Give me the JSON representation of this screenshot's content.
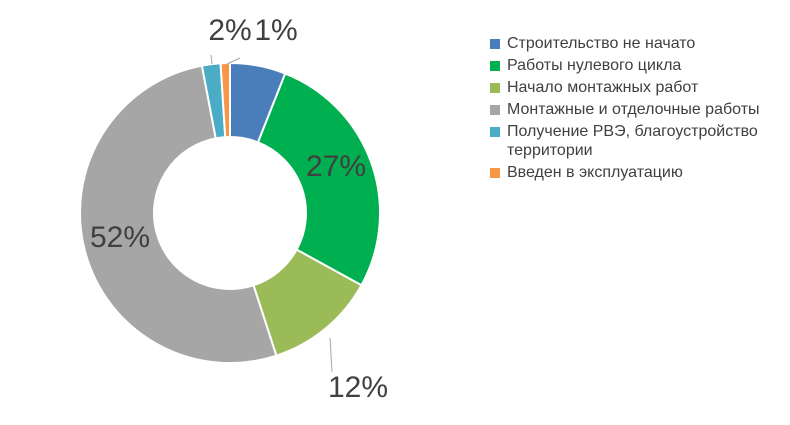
{
  "chart_data": {
    "type": "pie",
    "donut": true,
    "legend_position": "right",
    "categories": [
      "Строительство не начато",
      "Работы нулевого цикла",
      "Начало монтажных работ",
      "Монтажные и отделочные работы",
      "Получение РВЭ, благоустройство территории",
      "Введен в эксплуатацию"
    ],
    "values": [
      6,
      27,
      12,
      52,
      2,
      1
    ],
    "labels": [
      "",
      "27%",
      "12%",
      "52%",
      "2%",
      "1%"
    ],
    "colors": [
      "#4a7ebb",
      "#00b050",
      "#9bbb59",
      "#a6a6a6",
      "#4bacc6",
      "#f79646"
    ]
  }
}
